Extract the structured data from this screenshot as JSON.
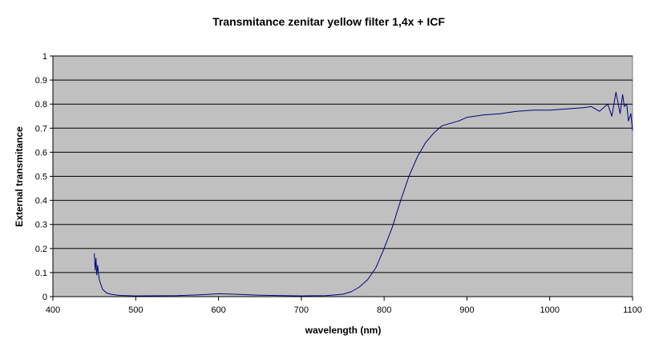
{
  "chart_data": {
    "type": "line",
    "title": "Transmitance zenitar yellow filter 1,4x + ICF",
    "xlabel": "wavelength (nm)",
    "ylabel": "External transmitance",
    "xlim": [
      400,
      1100
    ],
    "ylim": [
      0,
      1
    ],
    "x_ticks": [
      400,
      500,
      600,
      700,
      800,
      900,
      1000,
      1100
    ],
    "x_tick_labels": [
      "400",
      "500",
      "600",
      "700",
      "800",
      "900",
      "1000",
      "1100"
    ],
    "y_ticks": [
      0,
      0.1,
      0.2,
      0.3,
      0.4,
      0.5,
      0.6,
      0.7,
      0.8,
      0.9,
      1
    ],
    "y_tick_labels": [
      "0",
      "0.1",
      "0.2",
      "0.3",
      "0.4",
      "0.5",
      "0.6",
      "0.7",
      "0.8",
      "0.9",
      "1"
    ],
    "grid": "horizontal",
    "legend": "none",
    "plot_background": "#c0c0c0",
    "grid_color": "#000000",
    "series": [
      {
        "color": "#000080",
        "x": [
          450,
          451,
          452,
          453,
          454,
          456,
          458,
          460,
          465,
          470,
          480,
          500,
          550,
          580,
          600,
          620,
          650,
          700,
          730,
          750,
          760,
          770,
          780,
          790,
          800,
          810,
          820,
          830,
          840,
          850,
          860,
          870,
          880,
          890,
          900,
          920,
          940,
          960,
          980,
          1000,
          1020,
          1040,
          1050,
          1060,
          1070,
          1075,
          1080,
          1085,
          1088,
          1090,
          1093,
          1095,
          1098,
          1100
        ],
        "y": [
          0.18,
          0.11,
          0.16,
          0.09,
          0.13,
          0.07,
          0.05,
          0.03,
          0.015,
          0.01,
          0.005,
          0.003,
          0.004,
          0.008,
          0.012,
          0.01,
          0.006,
          0.003,
          0.004,
          0.01,
          0.02,
          0.04,
          0.07,
          0.12,
          0.2,
          0.29,
          0.4,
          0.5,
          0.58,
          0.64,
          0.68,
          0.71,
          0.72,
          0.73,
          0.745,
          0.755,
          0.76,
          0.77,
          0.775,
          0.775,
          0.78,
          0.785,
          0.79,
          0.77,
          0.8,
          0.75,
          0.85,
          0.76,
          0.84,
          0.79,
          0.8,
          0.73,
          0.76,
          0.69
        ]
      }
    ]
  }
}
